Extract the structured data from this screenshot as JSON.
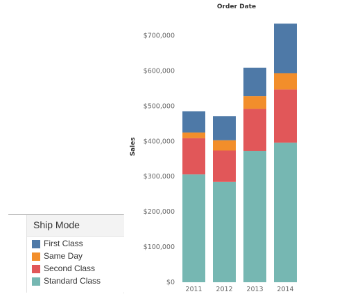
{
  "chart_data": {
    "type": "bar",
    "stacked": true,
    "title": "Order Date",
    "ylabel": "Sales",
    "categories": [
      "2011",
      "2012",
      "2013",
      "2014"
    ],
    "ylim": [
      0,
      750000
    ],
    "yticks": [
      0,
      100000,
      200000,
      300000,
      400000,
      500000,
      600000,
      700000
    ],
    "ytick_labels": [
      "$0",
      "$100,000",
      "$200,000",
      "$300,000",
      "$400,000",
      "$500,000",
      "$600,000",
      "$700,000"
    ],
    "grid": false,
    "series": [
      {
        "name": "Standard Class",
        "color": "#76b7b2",
        "values": [
          306000,
          285000,
          373000,
          396000
        ]
      },
      {
        "name": "Second Class",
        "color": "#e15759",
        "values": [
          103000,
          89000,
          119000,
          151000
        ]
      },
      {
        "name": "Same Day",
        "color": "#f28e2b",
        "values": [
          16000,
          29000,
          36000,
          46000
        ]
      },
      {
        "name": "First Class",
        "color": "#4e79a7",
        "values": [
          60000,
          68000,
          81000,
          141000
        ]
      }
    ]
  },
  "legend": {
    "title": "Ship Mode",
    "items": [
      {
        "label": "First Class",
        "color": "#4e79a7"
      },
      {
        "label": "Same Day",
        "color": "#f28e2b"
      },
      {
        "label": "Second Class",
        "color": "#e15759"
      },
      {
        "label": "Standard Class",
        "color": "#76b7b2"
      }
    ]
  }
}
